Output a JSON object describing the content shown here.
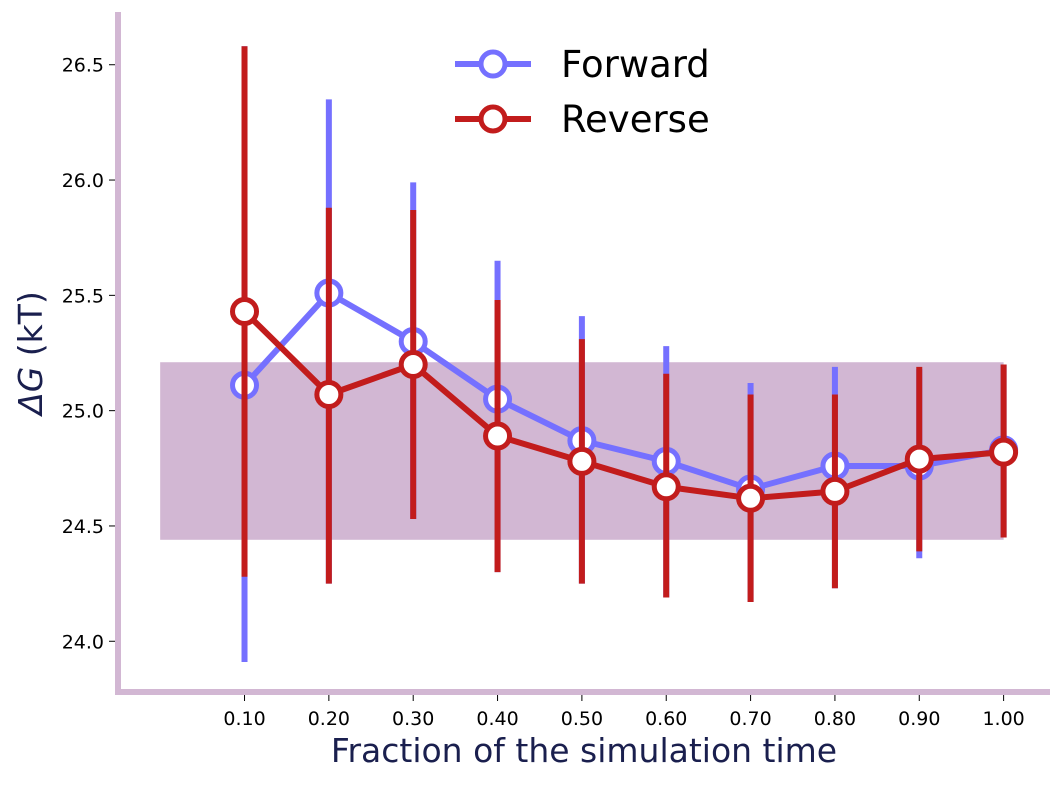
{
  "chart_data": {
    "type": "line",
    "xlabel": "Fraction of the simulation time",
    "ylabel": "ΔG (kT)",
    "ylabel_parts": {
      "symbol": "ΔG",
      "unit": " (kT)"
    },
    "x": [
      0.1,
      0.2,
      0.3,
      0.4,
      0.5,
      0.6,
      0.7,
      0.8,
      0.9,
      1.0
    ],
    "xtick_labels": [
      "0.10",
      "0.20",
      "0.30",
      "0.40",
      "0.50",
      "0.60",
      "0.70",
      "0.80",
      "0.90",
      "1.00"
    ],
    "yticks": [
      24.0,
      24.5,
      25.0,
      25.5,
      26.0,
      26.5
    ],
    "ytick_labels": [
      "24.0",
      "24.5",
      "25.0",
      "25.5",
      "26.0",
      "26.5"
    ],
    "xlim": [
      -0.05,
      1.055
    ],
    "ylim": [
      23.78,
      26.72
    ],
    "band": {
      "x_start": 0.0,
      "x_end": 1.0,
      "y_low": 24.44,
      "y_high": 25.21,
      "color": "#d2b7d3"
    },
    "grid": false,
    "legend": "top-center",
    "axis_color": "#d2b7d3",
    "series": [
      {
        "name": "Forward",
        "color": "#7570ff",
        "values": [
          25.11,
          25.51,
          25.3,
          25.05,
          24.87,
          24.78,
          24.66,
          24.76,
          24.76,
          24.83
        ],
        "err_low": [
          23.91,
          24.25,
          24.53,
          24.3,
          24.25,
          24.19,
          24.17,
          24.23,
          24.36,
          24.45
        ],
        "err_high": [
          26.58,
          26.35,
          25.99,
          25.65,
          25.41,
          25.28,
          25.12,
          25.19,
          25.18,
          25.2
        ]
      },
      {
        "name": "Reverse",
        "color": "#c21c1c",
        "values": [
          25.43,
          25.07,
          25.2,
          24.89,
          24.78,
          24.67,
          24.62,
          24.65,
          24.79,
          24.82
        ],
        "err_low": [
          24.28,
          24.25,
          24.53,
          24.3,
          24.25,
          24.19,
          24.17,
          24.23,
          24.39,
          24.45
        ],
        "err_high": [
          26.58,
          25.88,
          25.87,
          25.48,
          25.31,
          25.16,
          25.07,
          25.07,
          25.19,
          25.2
        ]
      }
    ]
  }
}
